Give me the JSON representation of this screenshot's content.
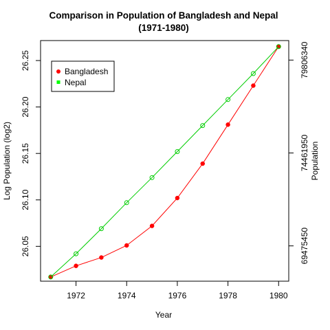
{
  "chart_data": {
    "type": "line",
    "title": "Comparison in Population of Bangladesh and Nepal",
    "subtitle": "(1971-1980)",
    "xlabel": "Year",
    "ylabel": "Log  Population (log2)",
    "y2label": "Population",
    "xlim": [
      1970.6,
      1980.4
    ],
    "ylim": [
      26.0125,
      26.2715
    ],
    "x_ticks": [
      1972,
      1974,
      1976,
      1978,
      1980
    ],
    "y_ticks": [
      26.05,
      26.1,
      26.15,
      26.2,
      26.25
    ],
    "y_tick_labels": [
      "26.05",
      "26.10",
      "26.15",
      "26.20",
      "26.25"
    ],
    "y2_ticks_log": [
      26.0505,
      26.1505,
      26.2505
    ],
    "y2_tick_labels": [
      "69475450",
      "74461950",
      "79806340"
    ],
    "x": [
      1971,
      1972,
      1973,
      1974,
      1975,
      1976,
      1977,
      1978,
      1979,
      1980
    ],
    "series": [
      {
        "name": "Bangladesh",
        "color": "#FF0000",
        "marker": "filled-circle",
        "values": [
          26.017,
          26.029,
          26.038,
          26.051,
          26.072,
          26.102,
          26.139,
          26.181,
          26.223,
          26.265
        ]
      },
      {
        "name": "Nepal",
        "color": "#00CD00",
        "marker": "open-circle",
        "values": [
          26.017,
          26.042,
          26.069,
          26.097,
          26.124,
          26.152,
          26.18,
          26.208,
          26.236,
          26.265
        ]
      }
    ],
    "legend": {
      "placement": "top-left",
      "items": [
        {
          "label": "Bangladesh",
          "color": "#FF0000",
          "symbol": "filled-circle"
        },
        {
          "label": "Nepal",
          "color": "#00FF00",
          "symbol": "filled-square"
        }
      ]
    },
    "grid": false
  }
}
